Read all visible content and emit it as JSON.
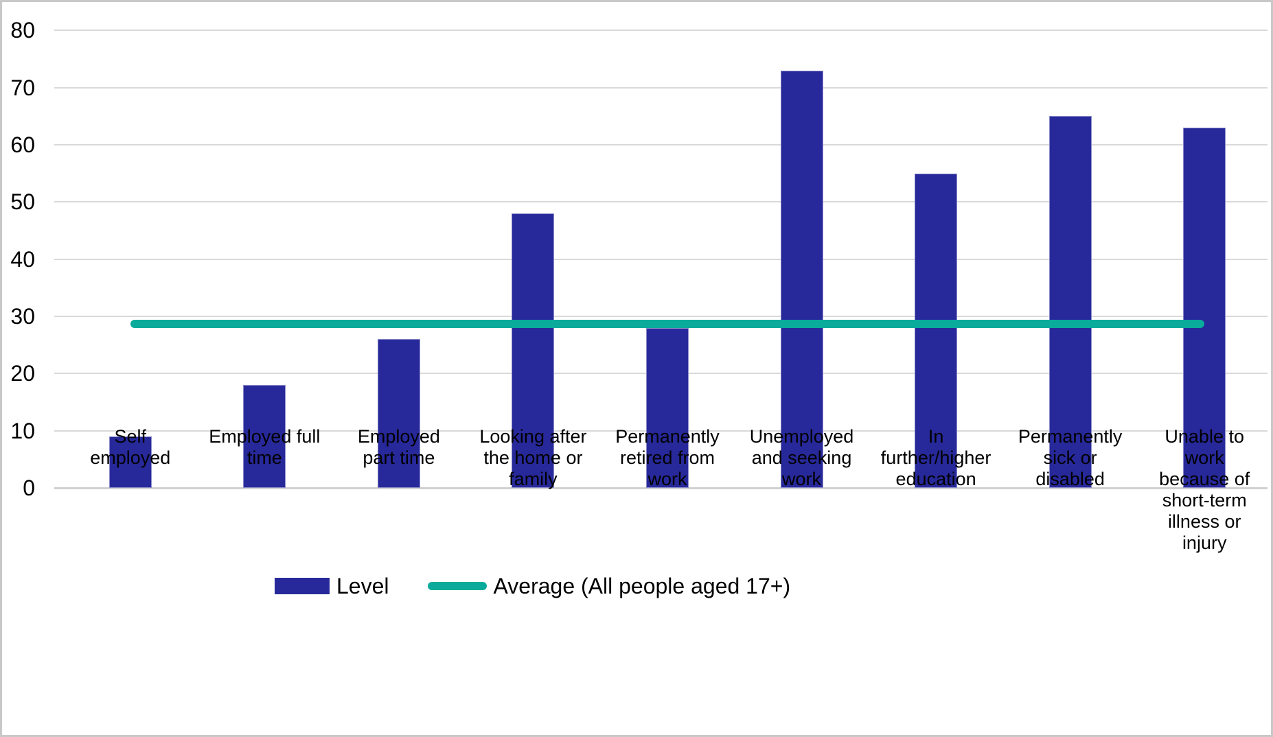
{
  "chart_data": {
    "type": "bar",
    "title": "",
    "xlabel": "",
    "ylabel": "",
    "ylim": [
      0,
      80
    ],
    "ytick_step": 10,
    "yticks": [
      0,
      10,
      20,
      30,
      40,
      50,
      60,
      70,
      80
    ],
    "grid": true,
    "legend_position": "bottom",
    "categories": [
      "Self employed",
      "Employed full time",
      "Employed part time",
      "Looking after the home or family",
      "Permanently retired from work",
      "Unemployed and seeking work",
      "In further/higher education",
      "Permanently sick or disabled",
      "Unable to work because of short-term illness or injury"
    ],
    "category_label_lines": [
      [
        "Self",
        "employed"
      ],
      [
        "Employed full",
        "time"
      ],
      [
        "Employed",
        "part time"
      ],
      [
        "Looking after",
        "the home or",
        "family"
      ],
      [
        "Permanently",
        "retired from",
        "work"
      ],
      [
        "Unemployed",
        "and seeking",
        "work"
      ],
      [
        "In",
        "further/higher",
        "education"
      ],
      [
        "Permanently",
        "sick or",
        "disabled"
      ],
      [
        "Unable to",
        "work",
        "because of",
        "short-term",
        "illness or",
        "injury"
      ]
    ],
    "series": [
      {
        "name": "Level",
        "type": "bar",
        "color": "#27299a",
        "values": [
          9,
          18,
          26,
          48,
          28,
          73,
          55,
          65,
          63
        ]
      },
      {
        "name": "Average (All people aged 17+)",
        "type": "line",
        "color": "#0aab9a",
        "value": 28.7
      }
    ]
  },
  "colors": {
    "bar": "#27299a",
    "average_line": "#0aab9a",
    "gridline": "#d9d9d9",
    "text": "#000000",
    "frame_border": "#c8c8c8"
  }
}
